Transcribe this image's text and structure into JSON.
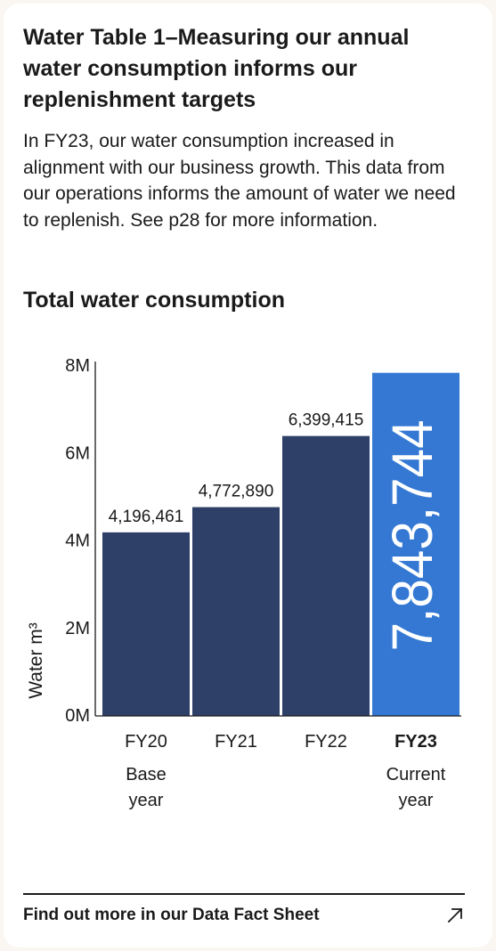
{
  "header": {
    "title": "Water Table 1–Measuring our annual water consumption informs our replenishment targets",
    "description": "In FY23, our water consumption increased in alignment with our business growth. This data from our operations informs the amount of water we need to replenish. See p28 for more information."
  },
  "colors": {
    "bar_default": "#2e4068",
    "bar_highlight": "#3478d4",
    "text": "#1a1a1a"
  },
  "chart_data": {
    "type": "bar",
    "title": "Total water consumption",
    "ylabel": "Water m³",
    "ylim": [
      0,
      8000000
    ],
    "yticks": [
      {
        "value": 0,
        "label": "0M"
      },
      {
        "value": 2000000,
        "label": "2M"
      },
      {
        "value": 4000000,
        "label": "4M"
      },
      {
        "value": 6000000,
        "label": "6M"
      },
      {
        "value": 8000000,
        "label": "8M"
      }
    ],
    "categories": [
      "FY20",
      "FY21",
      "FY22",
      "FY23"
    ],
    "category_notes": [
      "Base year",
      "",
      "",
      "Current year"
    ],
    "values": [
      4196461,
      4772890,
      6399415,
      7843744
    ],
    "value_labels": [
      "4,196,461",
      "4,772,890",
      "6,399,415",
      "7,843,744"
    ],
    "highlight_index": 3,
    "grid": false
  },
  "footer": {
    "link_label": "Find out more in our Data Fact Sheet",
    "link_icon": "arrow-up-right-icon"
  }
}
